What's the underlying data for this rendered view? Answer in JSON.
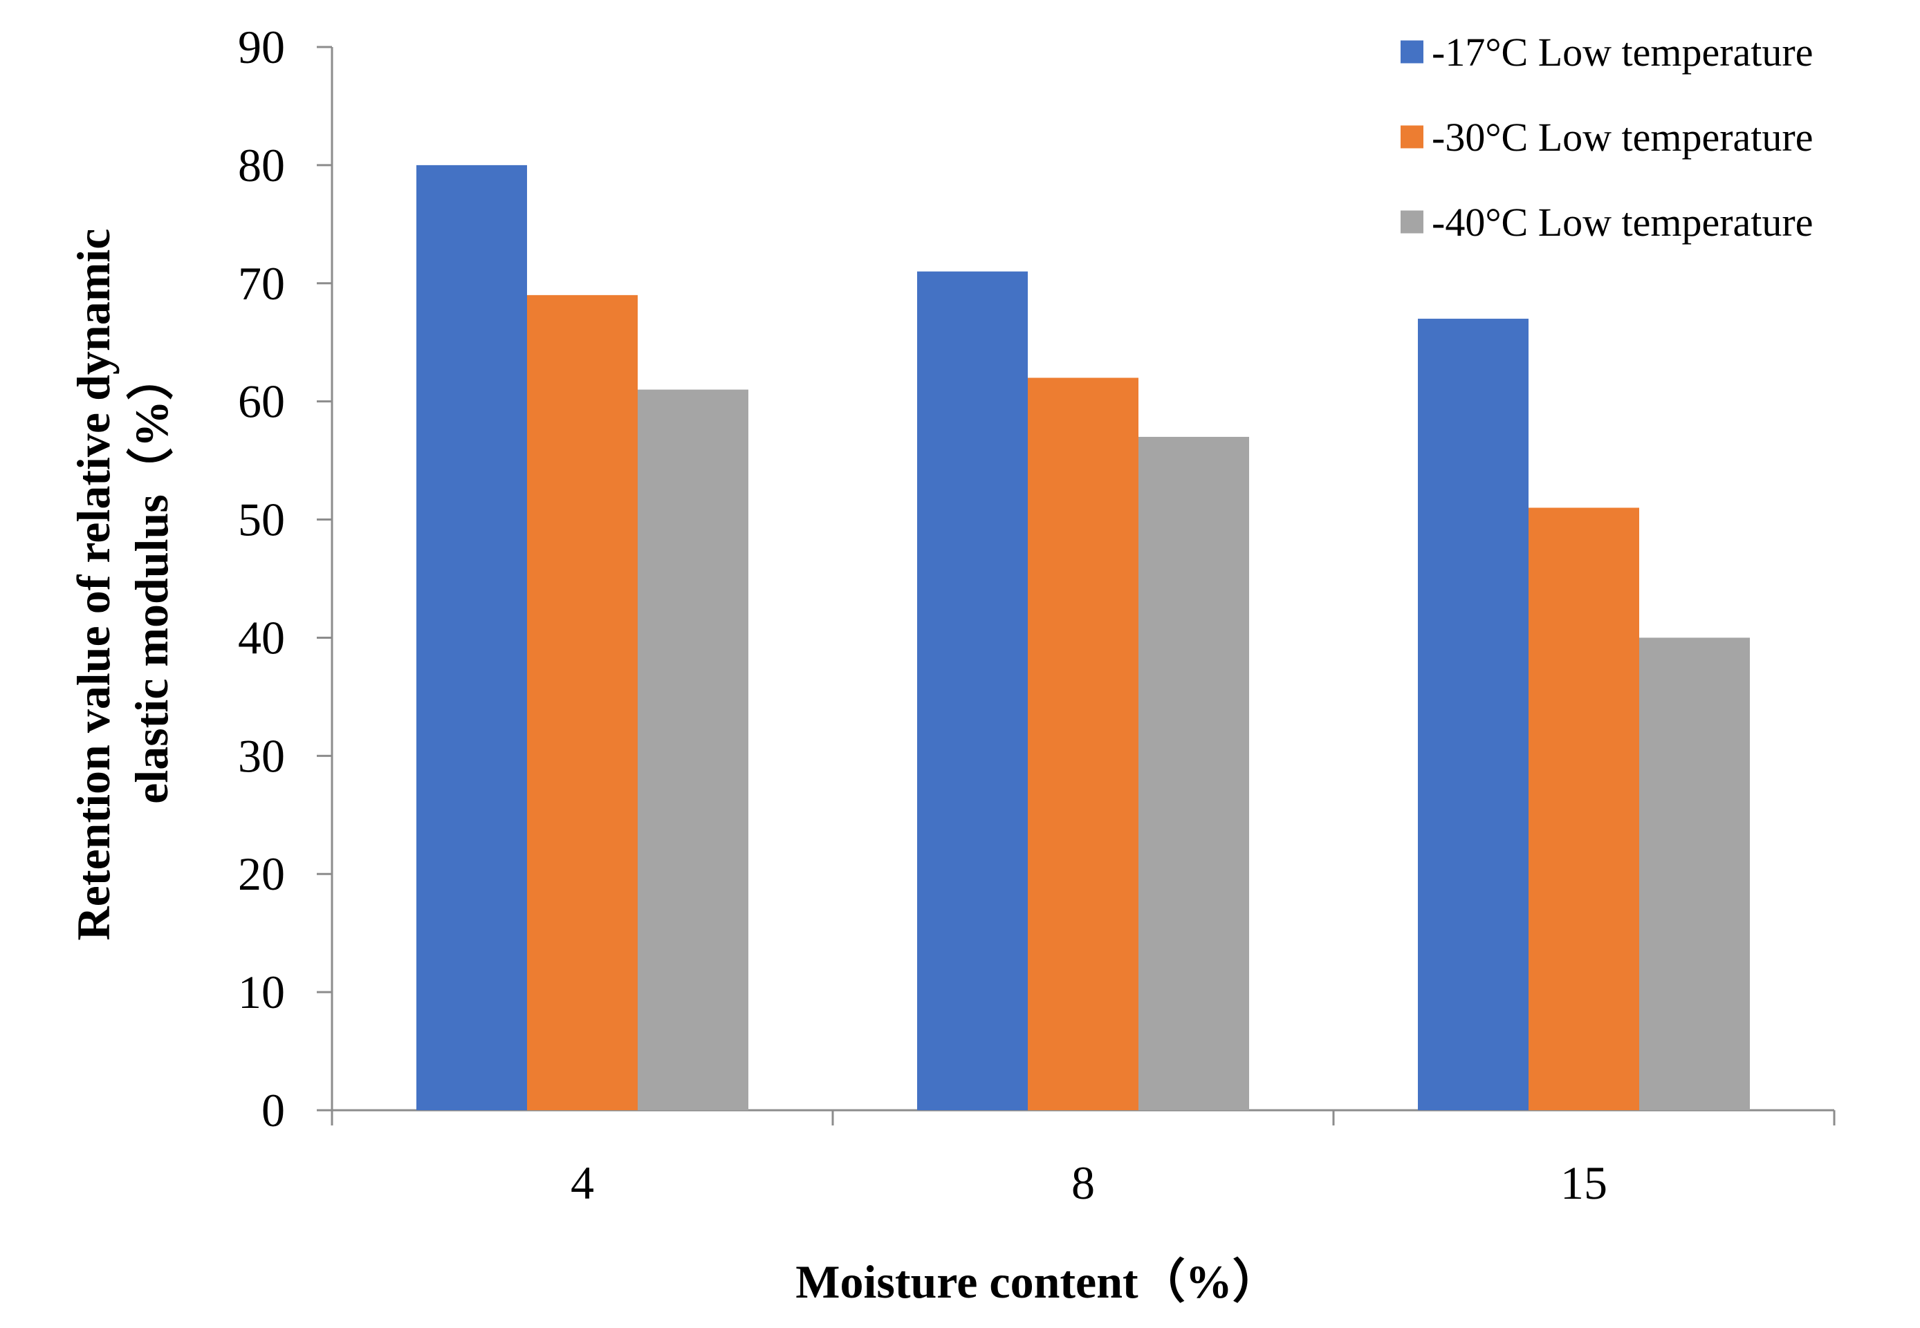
{
  "chart_data": {
    "type": "bar",
    "categories": [
      "4",
      "8",
      "15"
    ],
    "series": [
      {
        "name": "-17°C Low temperature",
        "values": [
          80,
          71,
          67
        ],
        "color": "#4472C4"
      },
      {
        "name": "-30°C Low temperature",
        "values": [
          69,
          62,
          51
        ],
        "color": "#ED7D31"
      },
      {
        "name": "-40°C Low temperature",
        "values": [
          61,
          57,
          40
        ],
        "color": "#A5A5A5"
      }
    ],
    "title": "",
    "xlabel": "Moisture content（%）",
    "ylabel_line1": "Retention value of relative dynamic",
    "ylabel_line2": "elastic modulus（%）",
    "ylim": [
      0,
      90
    ],
    "yticks": [
      "0",
      "10",
      "20",
      "30",
      "40",
      "50",
      "60",
      "70",
      "80",
      "90"
    ],
    "grid": false,
    "legend_position": "top-right"
  }
}
